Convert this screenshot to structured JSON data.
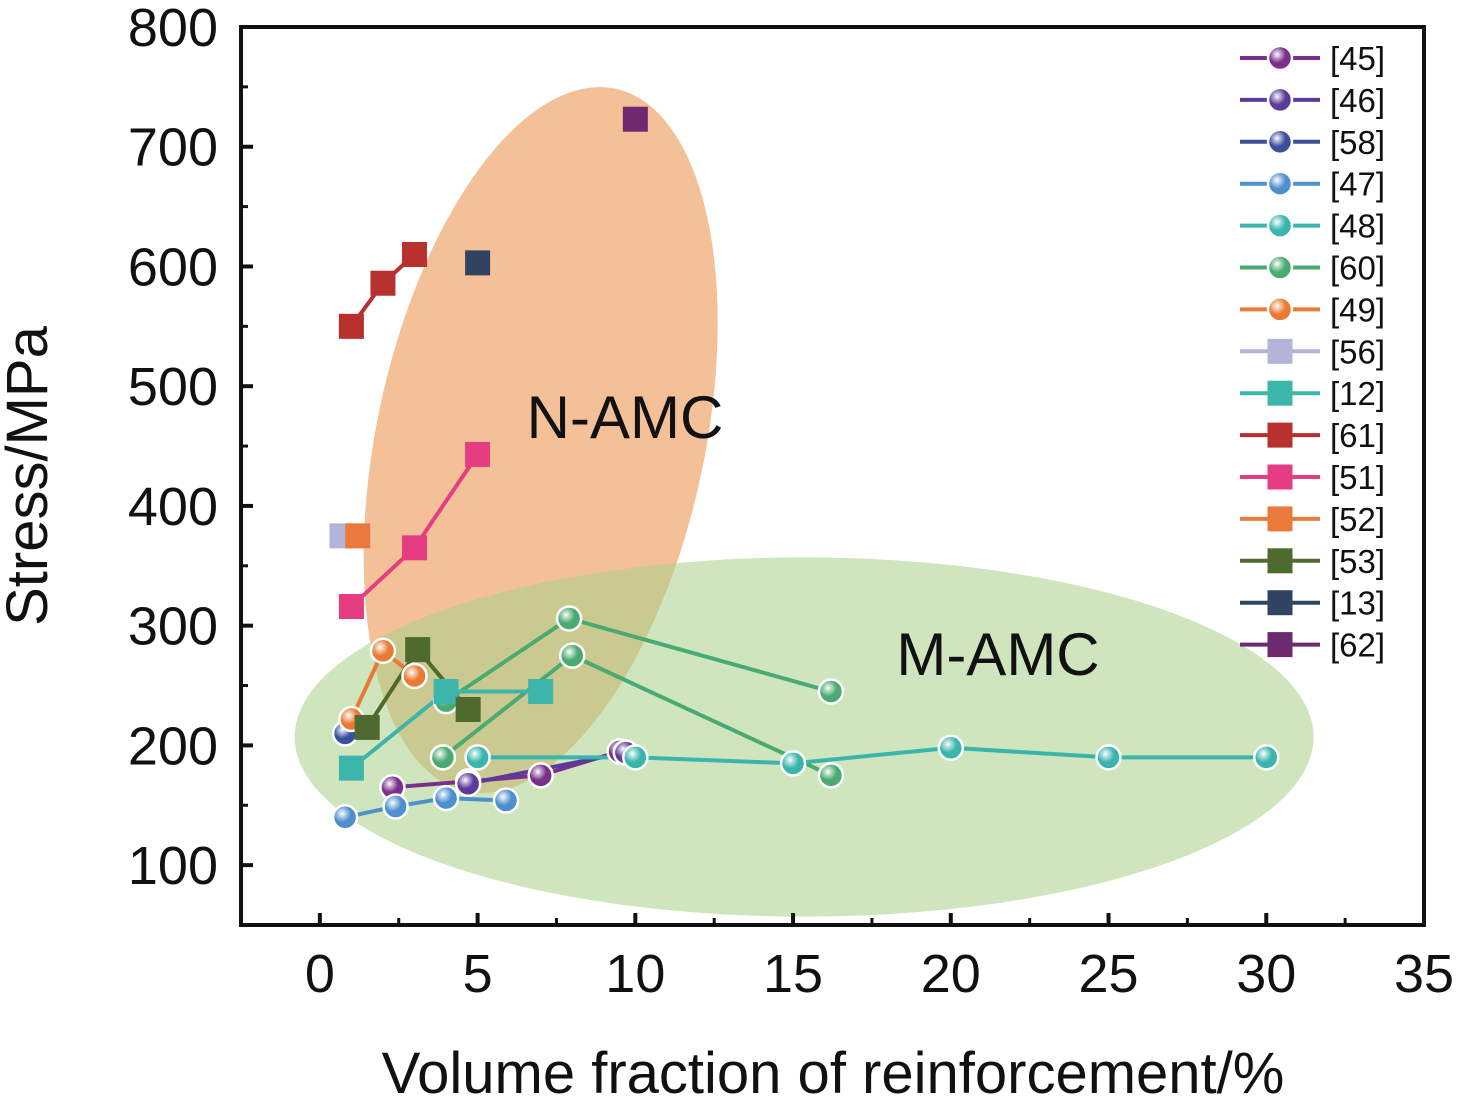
{
  "chart_data": {
    "type": "scatter",
    "xlabel": "Volume fraction of reinforcement/%",
    "ylabel": "Stress/MPa",
    "xlim": [
      -2.5,
      35
    ],
    "ylim": [
      50,
      800
    ],
    "xticks": [
      0,
      5,
      10,
      15,
      20,
      25,
      30,
      35
    ],
    "yticks": [
      100,
      200,
      300,
      400,
      500,
      600,
      700,
      800
    ],
    "grid": false,
    "legend_position": "top-right",
    "regions": [
      {
        "label": "N-AMC",
        "color": "#f0a870"
      },
      {
        "label": "M-AMC",
        "color": "#a8d088"
      }
    ],
    "series": [
      {
        "name": "[45]",
        "marker": "sphere",
        "color": "#7a2f8a",
        "x": [
          2.3,
          4.7,
          7.0,
          9.5
        ],
        "y": [
          165,
          170,
          175,
          195
        ]
      },
      {
        "name": "[46]",
        "marker": "sphere",
        "color": "#5b3a9a",
        "x": [
          4.7,
          9.7
        ],
        "y": [
          168,
          194
        ]
      },
      {
        "name": "[58]",
        "marker": "sphere",
        "color": "#3c4e9c",
        "x": [
          0.8
        ],
        "y": [
          210
        ]
      },
      {
        "name": "[47]",
        "marker": "sphere",
        "color": "#4e8fce",
        "x": [
          0.8,
          2.4,
          4.0,
          5.9
        ],
        "y": [
          140,
          149,
          156,
          154
        ]
      },
      {
        "name": "[48]",
        "marker": "sphere",
        "color": "#3ab5ad",
        "x": [
          5.0,
          10.0,
          15.0,
          20.0,
          25.0,
          30.0
        ],
        "y": [
          190,
          190,
          185,
          198,
          190,
          190
        ]
      },
      {
        "name": "[60]",
        "marker": "sphere",
        "color": "#4aaa72",
        "x": [
          3.9,
          8.0,
          16.2,
          4.0,
          7.9,
          16.2
        ],
        "y": [
          190,
          275,
          175,
          237,
          306,
          245
        ]
      },
      {
        "name": "[49]",
        "marker": "sphere",
        "color": "#ea7a33",
        "x": [
          1.0,
          2.0,
          3.0
        ],
        "y": [
          222,
          279,
          258
        ]
      },
      {
        "name": "[56]",
        "marker": "square",
        "color": "#b4b4d8",
        "x": [
          0.7
        ],
        "y": [
          375
        ]
      },
      {
        "name": "[12]",
        "marker": "square",
        "color": "#3eb5aa",
        "x": [
          1.0,
          4.0,
          7.0
        ],
        "y": [
          181,
          245,
          245
        ]
      },
      {
        "name": "[61]",
        "marker": "square",
        "color": "#b8312f",
        "x": [
          1.0,
          2.0,
          3.0
        ],
        "y": [
          550,
          586,
          610
        ]
      },
      {
        "name": "[51]",
        "marker": "square",
        "color": "#e63d82",
        "x": [
          1.0,
          3.0,
          5.0
        ],
        "y": [
          316,
          365,
          443
        ]
      },
      {
        "name": "[52]",
        "marker": "square",
        "color": "#ea7a3c",
        "x": [
          1.2
        ],
        "y": [
          375
        ]
      },
      {
        "name": "[53]",
        "marker": "square",
        "color": "#4f6a2e",
        "x": [
          1.5,
          3.1,
          4.7
        ],
        "y": [
          215,
          280,
          230
        ]
      },
      {
        "name": "[13]",
        "marker": "square",
        "color": "#304360",
        "x": [
          5.0
        ],
        "y": [
          603
        ]
      },
      {
        "name": "[62]",
        "marker": "square",
        "color": "#6e2a6e",
        "x": [
          10.0
        ],
        "y": [
          723
        ]
      }
    ]
  }
}
